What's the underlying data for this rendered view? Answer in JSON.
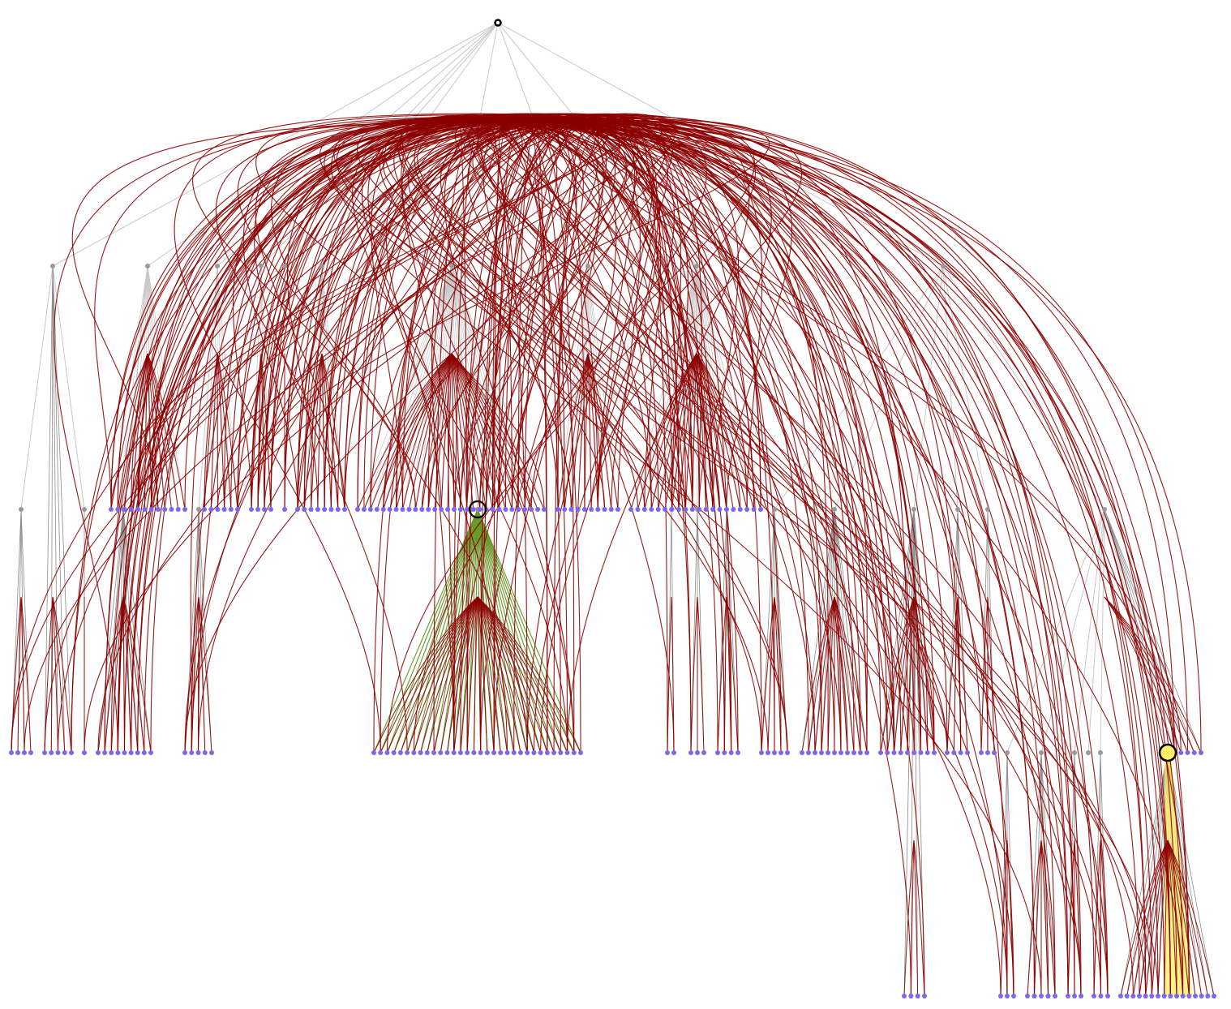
{
  "diagram": {
    "kind": "hierarchical-edge-bundling-tree",
    "title": "",
    "colors": {
      "background": "#ffffff",
      "tree_edge": "#c8c8c8",
      "tree_edge_dark": "#8c8c8c",
      "bundle_edge": "#8b0000",
      "highlight_edge_green": "#6a9a2a",
      "highlight_fill_yellow": "#ffee66",
      "root_node": "#000000",
      "internal_node": "#999999",
      "leaf_node": "#7b68ee",
      "selected_ring": "#000000"
    },
    "tree": {
      "levels": 5,
      "root_count": 1,
      "level1_group_count": 12,
      "selected_nodes": [
        "internal-node-selected-green",
        "leaf-node-selected-yellow"
      ]
    }
  }
}
